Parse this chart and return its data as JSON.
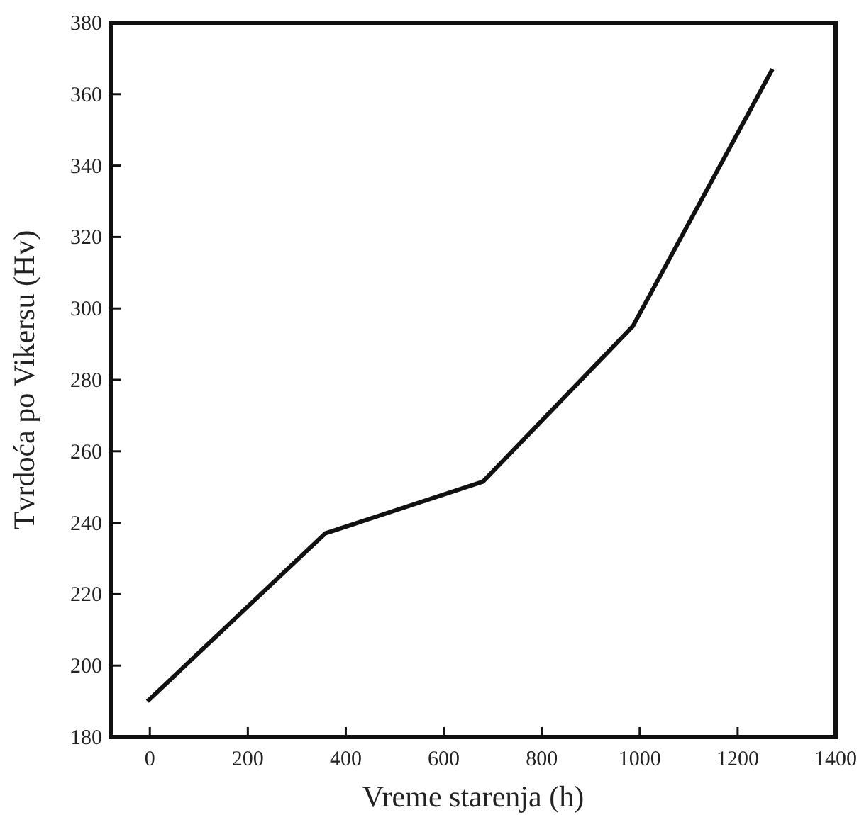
{
  "chart_data": {
    "type": "line",
    "xlabel": "Vreme starenja (h)",
    "ylabel": "Tvrdoća po Vikersu (Hv)",
    "x": [
      -5,
      358,
      680,
      986,
      1271
    ],
    "series": [
      {
        "color": "#111111",
        "values": [
          190,
          237,
          251.5,
          295,
          367
        ]
      }
    ],
    "xlim": [
      -80,
      1400
    ],
    "xticks": [
      0,
      200,
      400,
      600,
      800,
      1000,
      1200,
      1400
    ],
    "ylim": [
      180,
      380
    ],
    "yticks": [
      180,
      200,
      220,
      240,
      260,
      280,
      300,
      320,
      340,
      360,
      380
    ],
    "grid": false,
    "marker": "none",
    "line_style": "solid"
  }
}
